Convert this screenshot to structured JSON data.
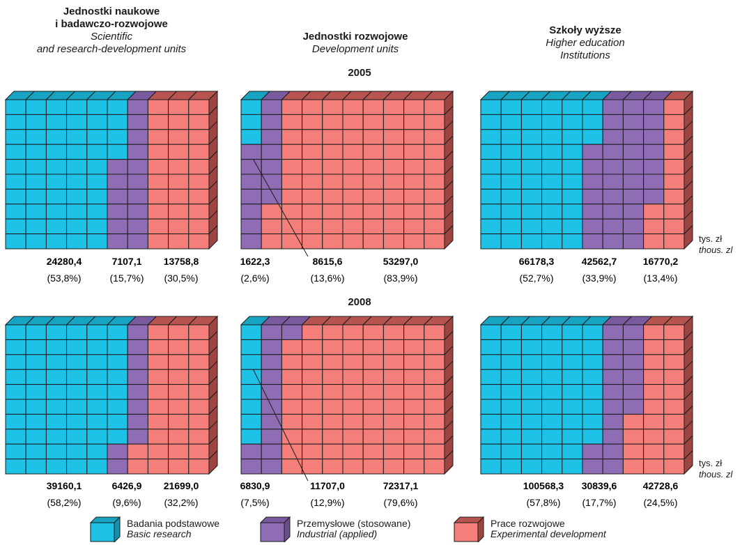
{
  "headers": [
    {
      "pl": "Jednostki naukowe\ni badawczo-rozwojowe",
      "en": "Scientific\nand research-development units"
    },
    {
      "pl": "Jednostki rozwojowe",
      "en": "Development units"
    },
    {
      "pl": "Szkoły wyższe",
      "en": "Higher education\nInstitutions"
    }
  ],
  "unit": {
    "pl": "tys. zł",
    "en": "thous. zl"
  },
  "legend": [
    {
      "pl": "Badania podstawowe",
      "en": "Basic research",
      "color": "#1ec2e6"
    },
    {
      "pl": "Przemysłowe (stosowane)",
      "en": "Industrial (applied)",
      "color": "#8e6db4"
    },
    {
      "pl": "Prace rozwojowe",
      "en": "Experimental development",
      "color": "#f47f7a"
    }
  ],
  "colors": {
    "basic": "#1ec2e6",
    "industrial": "#8e6db4",
    "development": "#f47f7a",
    "line": "#1a1a1a"
  },
  "chart_data": {
    "type": "waffle",
    "years": [
      "2005",
      "2008"
    ],
    "categories": [
      "Badania podstawowe",
      "Przemysłowe (stosowane)",
      "Prace rozwojowe"
    ],
    "panels": [
      {
        "year": "2005",
        "unit_type": 0,
        "values": [
          "24280,4",
          "7107,1",
          "13758,8"
        ],
        "percents": [
          "(53,8%)",
          "(15,7%)",
          "(30,5%)"
        ],
        "shares": [
          53.8,
          15.7,
          30.5
        ]
      },
      {
        "year": "2005",
        "unit_type": 1,
        "values": [
          "1622,3",
          "8615,6",
          "53297,0"
        ],
        "percents": [
          "(2,6%)",
          "(13,6%)",
          "(83,9%)"
        ],
        "shares": [
          2.6,
          13.6,
          83.9
        ]
      },
      {
        "year": "2005",
        "unit_type": 2,
        "values": [
          "66178,3",
          "42562,7",
          "16770,2"
        ],
        "percents": [
          "(52,7%)",
          "(33,9%)",
          "(13,4%)"
        ],
        "shares": [
          52.7,
          33.9,
          13.4
        ]
      },
      {
        "year": "2008",
        "unit_type": 0,
        "values": [
          "39160,1",
          "6426,9",
          "21699,0"
        ],
        "percents": [
          "(58,2%)",
          "(9,6%)",
          "(32,2%)"
        ],
        "shares": [
          58.2,
          9.6,
          32.2
        ]
      },
      {
        "year": "2008",
        "unit_type": 1,
        "values": [
          "6830,9",
          "11707,0",
          "72317,1"
        ],
        "percents": [
          "(7,5%)",
          "(12,9%)",
          "(79,6%)"
        ],
        "shares": [
          7.5,
          12.9,
          79.6
        ]
      },
      {
        "year": "2008",
        "unit_type": 2,
        "values": [
          "100568,3",
          "30839,6",
          "42728,6"
        ],
        "percents": [
          "(57,8%)",
          "(17,7%)",
          "(24,5%)"
        ],
        "shares": [
          57.8,
          17.7,
          24.5
        ]
      }
    ]
  }
}
